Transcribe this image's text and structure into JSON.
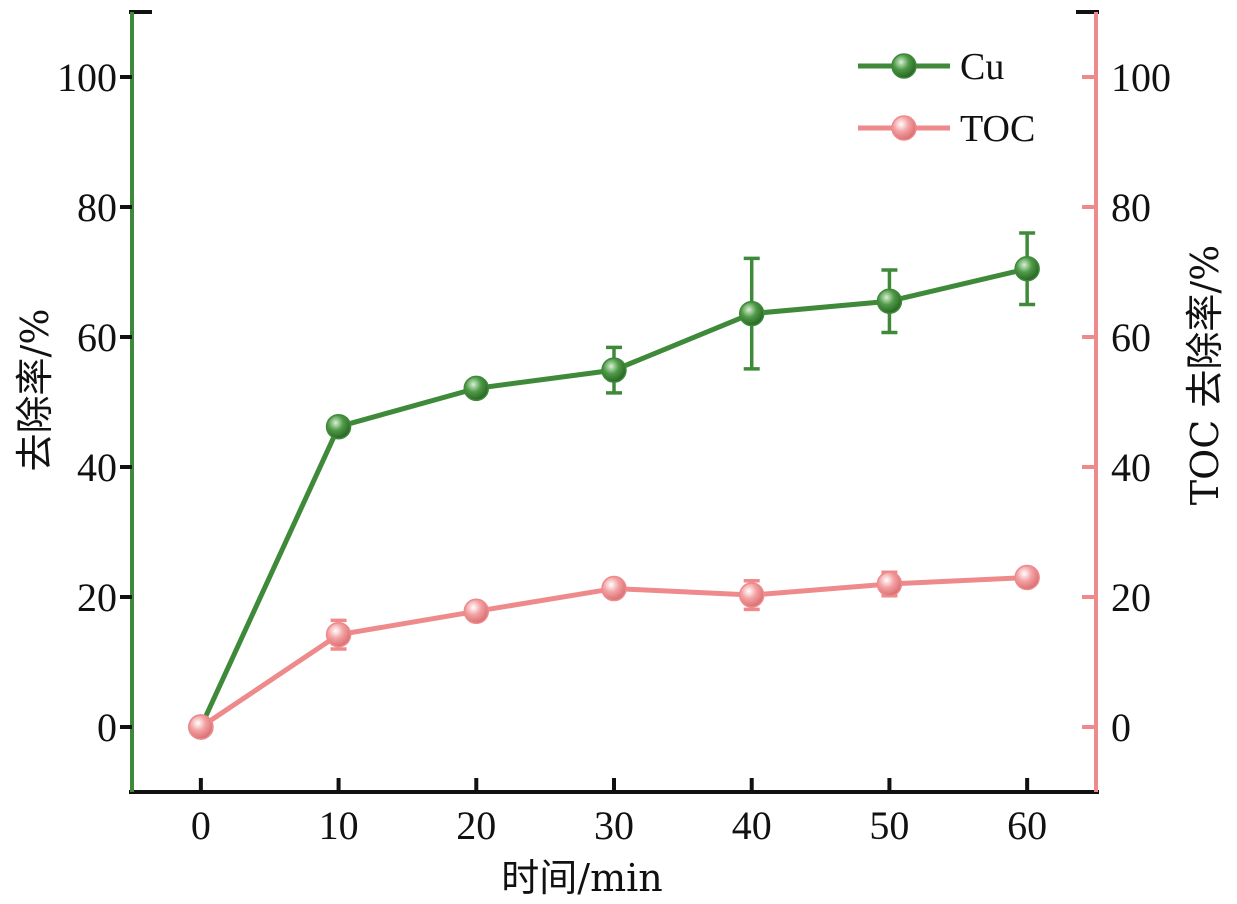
{
  "chart_data": {
    "type": "line",
    "x_axis": {
      "label": "时间/min",
      "range": [
        -5,
        65
      ],
      "ticks": [
        0,
        10,
        20,
        30,
        40,
        50,
        60
      ]
    },
    "y_axis_left": {
      "label": "去除率/%",
      "range": [
        -10,
        110
      ],
      "ticks": [
        0,
        20,
        40,
        60,
        80,
        100
      ],
      "color": "#3f8a3a"
    },
    "y_axis_right": {
      "label": "TOC 去除率/%",
      "range": [
        -10,
        110
      ],
      "ticks": [
        0,
        20,
        40,
        60,
        80,
        100
      ],
      "color": "#ef8a8c"
    },
    "legend": {
      "position": "top-right"
    },
    "series": [
      {
        "name": "Cu",
        "axis": "left",
        "color": "#3f8a3a",
        "x": [
          0,
          10,
          20,
          30,
          40,
          50,
          60
        ],
        "y": [
          0,
          46.2,
          52.1,
          54.9,
          63.6,
          65.5,
          70.5
        ],
        "error": [
          0,
          0,
          0,
          3.5,
          8.5,
          4.8,
          5.5
        ]
      },
      {
        "name": "TOC",
        "axis": "right",
        "color": "#ef8a8c",
        "x": [
          0,
          10,
          20,
          30,
          40,
          50,
          60
        ],
        "y": [
          0,
          14.2,
          17.8,
          21.3,
          20.3,
          22.0,
          23.0
        ],
        "error": [
          0,
          2.2,
          0,
          0,
          2.2,
          1.8,
          0
        ]
      }
    ]
  }
}
